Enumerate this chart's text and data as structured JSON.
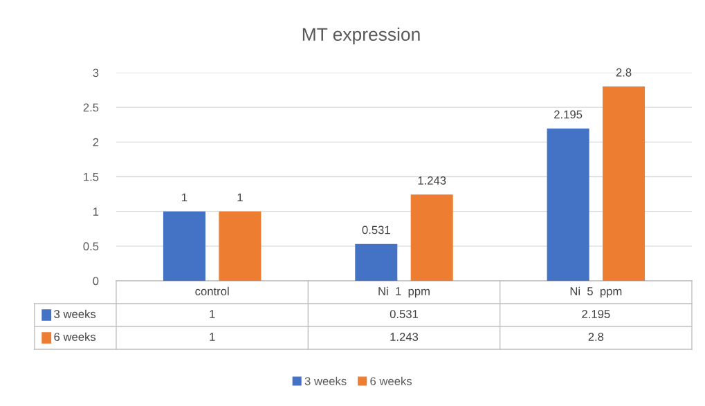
{
  "chart_data": {
    "type": "bar",
    "title": "MT expression",
    "categories": [
      "control",
      "Ni  1  ppm",
      "Ni  5  ppm"
    ],
    "series": [
      {
        "name": "3 weeks",
        "color": "#4472c4",
        "values": [
          1,
          0.531,
          2.195
        ],
        "value_labels": [
          "1",
          "0.531",
          "2.195"
        ]
      },
      {
        "name": "6 weeks",
        "color": "#ed7d31",
        "values": [
          1,
          1.243,
          2.8
        ],
        "value_labels": [
          "1",
          "1.243",
          "2.8"
        ]
      }
    ],
    "ylim": [
      0,
      3
    ],
    "yticks": [
      0,
      0.5,
      1,
      1.5,
      2,
      2.5,
      3
    ],
    "grid": "y",
    "annotations": [
      "1",
      "0.531",
      "2.195",
      "1",
      "1.243",
      "2.8"
    ],
    "legend": "bottom"
  }
}
